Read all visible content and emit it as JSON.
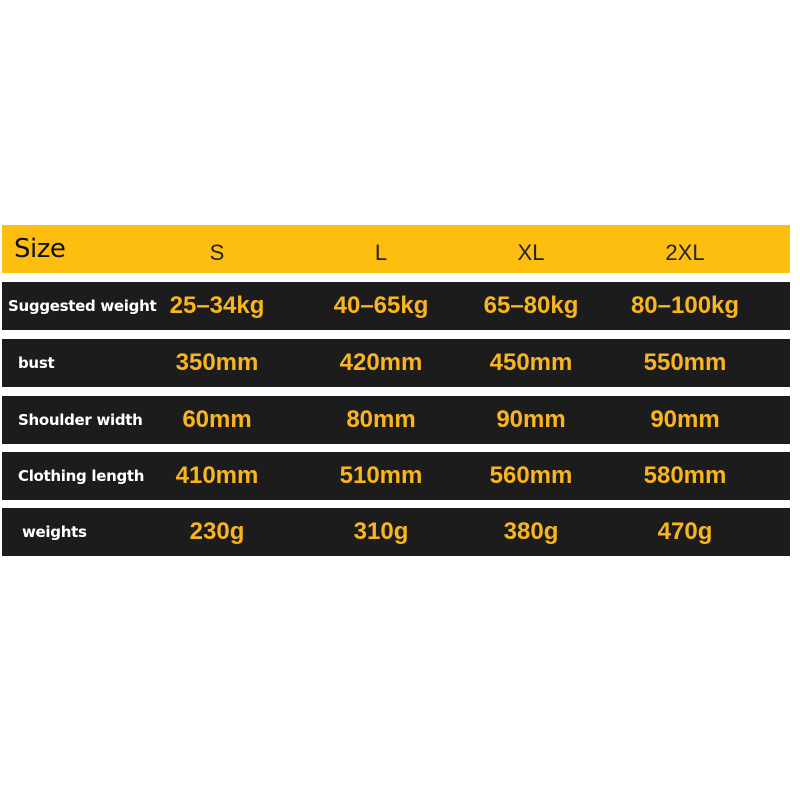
{
  "header": {
    "label": "Size",
    "sizes": [
      "S",
      "L",
      "XL",
      "2XL"
    ]
  },
  "colors": {
    "header_bg": "#FDBE10",
    "row_bg": "#1c1c1c",
    "value_text": "#F8B51E",
    "label_text": "#ffffff"
  },
  "rows": [
    {
      "label": "Suggested weight",
      "values": [
        "25–34kg",
        "40–65kg",
        "65–80kg",
        "80–100kg"
      ]
    },
    {
      "label": "bust",
      "values": [
        "350mm",
        "420mm",
        "450mm",
        "550mm"
      ]
    },
    {
      "label": "Shoulder width",
      "values": [
        "60mm",
        "80mm",
        "90mm",
        "90mm"
      ]
    },
    {
      "label": "Clothing length",
      "values": [
        "410mm",
        "510mm",
        "560mm",
        "580mm"
      ]
    },
    {
      "label": "weights",
      "values": [
        "230g",
        "310g",
        "380g",
        "470g"
      ]
    }
  ]
}
